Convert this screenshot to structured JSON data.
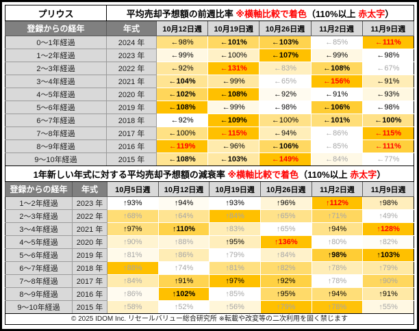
{
  "footer": {
    "text": "© 2025 IDOM Inc. リセールバリュー総合研究所 ※転載や改変等の二次利用を固く禁じます"
  },
  "colors": {
    "heat_min": "#FFFFFF",
    "heat_max": "#FFC000",
    "header_dark_bg": "#808080",
    "header_dark_text": "#FFFFFF",
    "header_light_bg": "#D9D9D9",
    "label_bg": "#D9D9D9",
    "red_text": "#FF0000",
    "gray_text": "#A6A6A6"
  },
  "chart_data": [
    {
      "type": "heatmap",
      "corner_label": "プリウス",
      "title_segments": [
        {
          "text": "平均売却予想額の前週比率 ",
          "red": false
        },
        {
          "text": "※横軸比較で着色",
          "red": true
        },
        {
          "text": "（110%以上 ",
          "red": false
        },
        {
          "text": "赤太字",
          "red": true
        },
        {
          "text": "）",
          "red": false
        }
      ],
      "row_header": "登録からの経年",
      "year_header": "年式",
      "week_headers": [
        "10月12日週",
        "10月19日週",
        "10月26日週",
        "11月2日週",
        "11月9日週"
      ],
      "value_prefix": "←",
      "value_suffix": "%",
      "heat_scale": {
        "compare": "per-row",
        "min_color": "#FFFFFF",
        "max_color": "#FFC000"
      },
      "style_legend": {
        "n": "normal",
        "b": "bold",
        "r": "red-bold",
        "g": "gray"
      },
      "rows": [
        {
          "label": "0～1年経過",
          "year": "2024 年",
          "values": [
            98,
            101,
            103,
            85,
            111
          ],
          "styles": [
            "n",
            "b",
            "b",
            "g",
            "r"
          ]
        },
        {
          "label": "1～2年経過",
          "year": "2023 年",
          "values": [
            99,
            100,
            107,
            99,
            98
          ],
          "styles": [
            "n",
            "n",
            "b",
            "n",
            "n"
          ]
        },
        {
          "label": "2～3年経過",
          "year": "2022 年",
          "values": [
            92,
            131,
            83,
            108,
            67
          ],
          "styles": [
            "n",
            "r",
            "g",
            "b",
            "g"
          ]
        },
        {
          "label": "3～4年経過",
          "year": "2021 年",
          "values": [
            104,
            99,
            65,
            156,
            91
          ],
          "styles": [
            "b",
            "n",
            "g",
            "r",
            "n"
          ]
        },
        {
          "label": "4～5年経過",
          "year": "2020 年",
          "values": [
            102,
            108,
            92,
            91,
            93
          ],
          "styles": [
            "b",
            "b",
            "n",
            "n",
            "n"
          ]
        },
        {
          "label": "5～6年経過",
          "year": "2019 年",
          "values": [
            108,
            99,
            98,
            106,
            98
          ],
          "styles": [
            "b",
            "n",
            "n",
            "b",
            "n"
          ]
        },
        {
          "label": "6～7年経過",
          "year": "2018 年",
          "values": [
            92,
            109,
            100,
            101,
            100
          ],
          "styles": [
            "n",
            "b",
            "n",
            "b",
            "b"
          ]
        },
        {
          "label": "7～8年経過",
          "year": "2017 年",
          "values": [
            100,
            115,
            94,
            86,
            115
          ],
          "styles": [
            "n",
            "r",
            "n",
            "g",
            "r"
          ]
        },
        {
          "label": "8～9年経過",
          "year": "2016 年",
          "values": [
            119,
            96,
            106,
            85,
            111
          ],
          "styles": [
            "r",
            "n",
            "b",
            "g",
            "r"
          ]
        },
        {
          "label": "9～10年経過",
          "year": "2015 年",
          "values": [
            108,
            103,
            149,
            84,
            77
          ],
          "styles": [
            "b",
            "b",
            "r",
            "g",
            "g"
          ]
        }
      ]
    },
    {
      "type": "heatmap",
      "title_segments": [
        {
          "text": "1年新しい年式に対する平均売却予想額の減衰率 ",
          "red": false
        },
        {
          "text": "※横軸比較で着色",
          "red": true
        },
        {
          "text": "（110%以上 ",
          "red": false
        },
        {
          "text": "赤太字",
          "red": true
        },
        {
          "text": "）",
          "red": false
        }
      ],
      "row_header": "登録からの経年",
      "year_header": "年式",
      "week_headers": [
        "10月5日週",
        "10月12日週",
        "10月19日週",
        "10月26日週",
        "11月2日週",
        "11月9日週"
      ],
      "value_prefix": "↑",
      "value_suffix": "%",
      "heat_scale": {
        "compare": "per-row",
        "min_color": "#FFFFFF",
        "max_color": "#FFC000"
      },
      "style_legend": {
        "n": "normal",
        "b": "bold",
        "r": "red-bold",
        "g": "gray"
      },
      "rows": [
        {
          "label": "1～2年経過",
          "year": "2023 年",
          "values": [
            93,
            94,
            93,
            96,
            112,
            98
          ],
          "styles": [
            "n",
            "n",
            "n",
            "n",
            "r",
            "n"
          ]
        },
        {
          "label": "2～3年経過",
          "year": "2022 年",
          "values": [
            68,
            64,
            84,
            65,
            71,
            49
          ],
          "styles": [
            "g",
            "g",
            "g",
            "g",
            "g",
            "g"
          ]
        },
        {
          "label": "3～4年経過",
          "year": "2021 年",
          "values": [
            97,
            110,
            83,
            65,
            94,
            128
          ],
          "styles": [
            "n",
            "b",
            "g",
            "g",
            "n",
            "r"
          ]
        },
        {
          "label": "4～5年経過",
          "year": "2020 年",
          "values": [
            90,
            88,
            95,
            136,
            80,
            82
          ],
          "styles": [
            "g",
            "g",
            "n",
            "r",
            "g",
            "g"
          ]
        },
        {
          "label": "5～6年経過",
          "year": "2019 年",
          "values": [
            81,
            86,
            79,
            84,
            98,
            103
          ],
          "styles": [
            "g",
            "g",
            "g",
            "g",
            "b",
            "b"
          ]
        },
        {
          "label": "6～7年経過",
          "year": "2018 年",
          "values": [
            88,
            74,
            81,
            82,
            78,
            79
          ],
          "styles": [
            "g",
            "g",
            "g",
            "g",
            "g",
            "g"
          ]
        },
        {
          "label": "7～8年経過",
          "year": "2017 年",
          "values": [
            84,
            91,
            97,
            92,
            78,
            90
          ],
          "styles": [
            "g",
            "n",
            "n",
            "n",
            "g",
            "g"
          ]
        },
        {
          "label": "8～9年経過",
          "year": "2016 年",
          "values": [
            86,
            102,
            85,
            95,
            94,
            91
          ],
          "styles": [
            "g",
            "b",
            "g",
            "n",
            "n",
            "n"
          ]
        },
        {
          "label": "9～10年経過",
          "year": "2015 年",
          "values": [
            58,
            52,
            56,
            79,
            78,
            55
          ],
          "styles": [
            "g",
            "g",
            "g",
            "g",
            "g",
            "g"
          ]
        }
      ]
    }
  ]
}
